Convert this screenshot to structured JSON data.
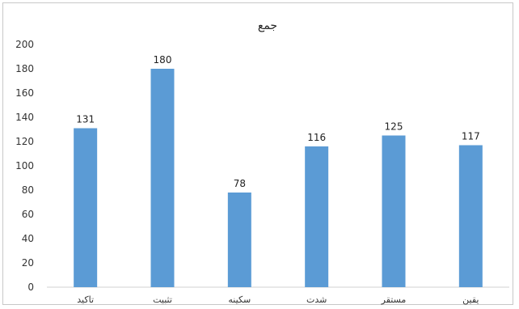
{
  "chart_data": {
    "type": "bar",
    "title": "جمع",
    "categories": [
      "تاکید",
      "تثبیت",
      "سکینه",
      "شدت",
      "مستقر",
      "یقین"
    ],
    "values": [
      131,
      180,
      78,
      116,
      125,
      117
    ],
    "yticks": [
      0,
      20,
      40,
      60,
      80,
      100,
      120,
      140,
      160,
      180,
      200
    ],
    "ylim": [
      0,
      200
    ],
    "xlabel": "",
    "ylabel": "",
    "grid": false,
    "legend": "none",
    "bar_color": "#5b9bd5"
  }
}
